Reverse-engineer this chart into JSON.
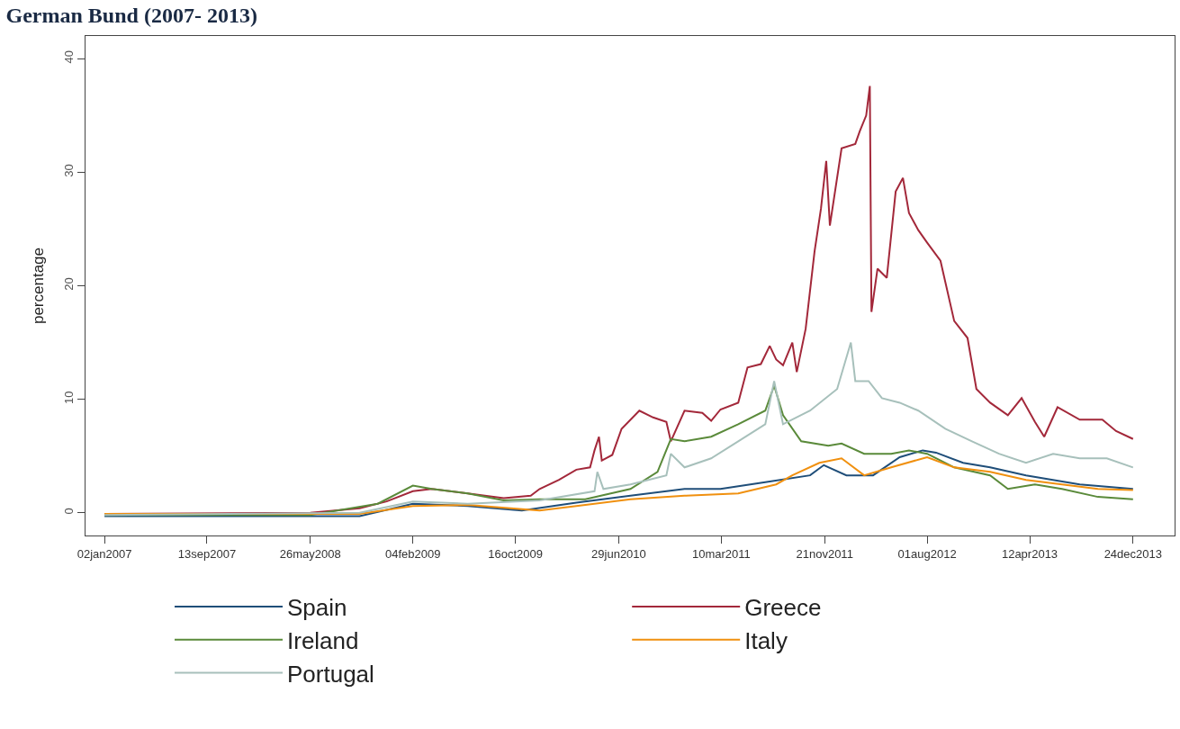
{
  "chart_data": {
    "type": "line",
    "title": "German Bund (2007- 2013)",
    "ylabel": "percentage",
    "xlim": [
      "2006-11-16",
      "2014-04-06"
    ],
    "ylim": [
      -2,
      42
    ],
    "xticks": [
      {
        "value": "2007-01-02",
        "label": "02jan2007"
      },
      {
        "value": "2007-09-13",
        "label": "13sep2007"
      },
      {
        "value": "2008-05-26",
        "label": "26may2008"
      },
      {
        "value": "2009-02-04",
        "label": "04feb2009"
      },
      {
        "value": "2009-10-16",
        "label": "16oct2009"
      },
      {
        "value": "2010-06-29",
        "label": "29jun2010"
      },
      {
        "value": "2011-03-10",
        "label": "10mar2011"
      },
      {
        "value": "2011-11-21",
        "label": "21nov2011"
      },
      {
        "value": "2012-08-01",
        "label": "01aug2012"
      },
      {
        "value": "2013-04-12",
        "label": "12apr2013"
      },
      {
        "value": "2013-12-24",
        "label": "24dec2013"
      }
    ],
    "yticks": [
      0,
      10,
      20,
      30,
      40
    ],
    "legend": "bottom",
    "line_style": "solid",
    "series": [
      {
        "name": "Spain",
        "color": "#1f4e79",
        "x": [
          "2007-01-02",
          "2008-09-25",
          "2009-02-04",
          "2009-06-20",
          "2009-11-01",
          "2010-03-16",
          "2010-07-28",
          "2010-12-09",
          "2011-03-08",
          "2011-06-27",
          "2011-10-16",
          "2011-11-19",
          "2012-01-14",
          "2012-03-20",
          "2012-05-25",
          "2012-07-21",
          "2012-08-23",
          "2012-10-29",
          "2013-01-04",
          "2013-04-03",
          "2013-08-14",
          "2013-12-24"
        ],
        "values": [
          -0.3,
          -0.3,
          0.8,
          0.6,
          0.2,
          0.9,
          1.5,
          2.1,
          2.1,
          2.7,
          3.3,
          4.2,
          3.3,
          3.3,
          4.9,
          5.5,
          5.3,
          4.4,
          4.0,
          3.3,
          2.5,
          2.1
        ]
      },
      {
        "name": "Greece",
        "color": "#a3283a",
        "x": [
          "2007-01-02",
          "2008-05-26",
          "2008-09-25",
          "2008-12-01",
          "2009-02-04",
          "2009-03-23",
          "2009-06-20",
          "2009-09-17",
          "2009-11-23",
          "2009-12-15",
          "2010-02-01",
          "2010-03-16",
          "2010-04-19",
          "2010-04-30",
          "2010-05-11",
          "2010-05-18",
          "2010-06-13",
          "2010-07-06",
          "2010-08-19",
          "2010-09-22",
          "2010-10-25",
          "2010-11-05",
          "2010-12-09",
          "2011-01-22",
          "2011-02-13",
          "2011-03-08",
          "2011-04-21",
          "2011-05-14",
          "2011-06-16",
          "2011-07-08",
          "2011-07-24",
          "2011-08-10",
          "2011-09-02",
          "2011-09-13",
          "2011-10-05",
          "2011-10-27",
          "2011-11-12",
          "2011-11-25",
          "2011-12-04",
          "2012-01-02",
          "2012-02-05",
          "2012-02-16",
          "2012-03-03",
          "2012-03-12",
          "2012-03-16",
          "2012-03-31",
          "2012-04-23",
          "2012-05-15",
          "2012-06-02",
          "2012-06-17",
          "2012-07-10",
          "2012-08-01",
          "2012-09-03",
          "2012-10-07",
          "2012-11-09",
          "2012-12-01",
          "2013-01-04",
          "2013-02-17",
          "2013-03-23",
          "2013-04-25",
          "2013-05-18",
          "2013-06-20",
          "2013-08-14",
          "2013-10-09",
          "2013-11-12",
          "2013-12-24"
        ],
        "values": [
          -0.1,
          0,
          0.4,
          1,
          1.9,
          2.1,
          1.7,
          1.3,
          1.5,
          2.1,
          2.9,
          3.8,
          4.0,
          5.5,
          6.7,
          4.6,
          5.1,
          7.4,
          9.0,
          8.4,
          8.0,
          6.3,
          9.0,
          8.8,
          8.1,
          9.1,
          9.7,
          12.8,
          13.1,
          14.7,
          13.5,
          13.0,
          15.0,
          12.4,
          16.2,
          23.0,
          26.8,
          31.0,
          25.3,
          32.1,
          32.5,
          33.6,
          35.0,
          37.6,
          17.7,
          21.5,
          20.7,
          28.3,
          29.5,
          26.4,
          24.9,
          23.8,
          22.2,
          16.9,
          15.4,
          10.9,
          9.7,
          8.6,
          10.1,
          8.0,
          6.7,
          9.3,
          8.2,
          8.2,
          7.2,
          6.5
        ]
      },
      {
        "name": "Ireland",
        "color": "#5a8a3a",
        "x": [
          "2007-01-02",
          "2008-05-26",
          "2008-11-09",
          "2009-02-04",
          "2009-03-23",
          "2009-06-20",
          "2009-09-17",
          "2009-12-15",
          "2010-04-07",
          "2010-07-28",
          "2010-10-03",
          "2010-11-05",
          "2010-12-09",
          "2011-02-13",
          "2011-04-21",
          "2011-06-27",
          "2011-07-19",
          "2011-08-10",
          "2011-09-24",
          "2011-11-30",
          "2012-01-02",
          "2012-02-27",
          "2012-05-04",
          "2012-06-17",
          "2012-08-01",
          "2012-10-07",
          "2013-01-04",
          "2013-02-17",
          "2013-04-25",
          "2013-07-01",
          "2013-09-28",
          "2013-12-24"
        ],
        "values": [
          -0.2,
          -0.2,
          0.8,
          2.4,
          2.1,
          1.7,
          1.1,
          1.2,
          1.2,
          2.1,
          3.6,
          6.5,
          6.3,
          6.7,
          7.8,
          9.0,
          11.2,
          8.6,
          6.3,
          5.9,
          6.1,
          5.2,
          5.2,
          5.5,
          5.2,
          4.0,
          3.3,
          2.1,
          2.5,
          2.1,
          1.4,
          1.2
        ]
      },
      {
        "name": "Italy",
        "color": "#f0900f",
        "x": [
          "2007-01-02",
          "2008-09-25",
          "2009-02-04",
          "2009-06-20",
          "2009-12-15",
          "2010-03-16",
          "2010-07-28",
          "2010-12-09",
          "2011-04-21",
          "2011-07-24",
          "2011-09-02",
          "2011-11-08",
          "2012-01-02",
          "2012-02-27",
          "2012-05-04",
          "2012-08-01",
          "2012-10-07",
          "2013-01-04",
          "2013-04-03",
          "2013-07-01",
          "2013-09-28",
          "2013-12-24"
        ],
        "values": [
          -0.1,
          -0.1,
          0.6,
          0.7,
          0.2,
          0.6,
          1.2,
          1.5,
          1.7,
          2.5,
          3.3,
          4.4,
          4.8,
          3.3,
          4.0,
          4.9,
          4.0,
          3.6,
          2.9,
          2.5,
          2.1,
          2.0
        ]
      },
      {
        "name": "Portugal",
        "color": "#a7c0bb",
        "x": [
          "2007-01-02",
          "2008-09-25",
          "2009-02-04",
          "2009-06-20",
          "2009-12-15",
          "2010-04-30",
          "2010-05-07",
          "2010-05-22",
          "2010-07-28",
          "2010-10-25",
          "2010-11-05",
          "2010-12-09",
          "2011-02-13",
          "2011-04-21",
          "2011-06-27",
          "2011-07-19",
          "2011-08-10",
          "2011-10-16",
          "2011-12-22",
          "2012-01-25",
          "2012-02-05",
          "2012-03-09",
          "2012-04-11",
          "2012-05-25",
          "2012-07-10",
          "2012-09-15",
          "2012-11-20",
          "2013-01-26",
          "2013-04-03",
          "2013-06-09",
          "2013-08-14",
          "2013-10-20",
          "2013-12-24"
        ],
        "values": [
          -0.2,
          0,
          1.0,
          0.8,
          1.1,
          1.9,
          3.6,
          2.1,
          2.5,
          3.3,
          5.2,
          4.0,
          4.8,
          6.3,
          7.8,
          11.6,
          7.8,
          9.0,
          10.9,
          15.0,
          11.6,
          11.6,
          10.1,
          9.7,
          9.0,
          7.4,
          6.3,
          5.2,
          4.4,
          5.2,
          4.8,
          4.8,
          4.0
        ]
      }
    ]
  }
}
